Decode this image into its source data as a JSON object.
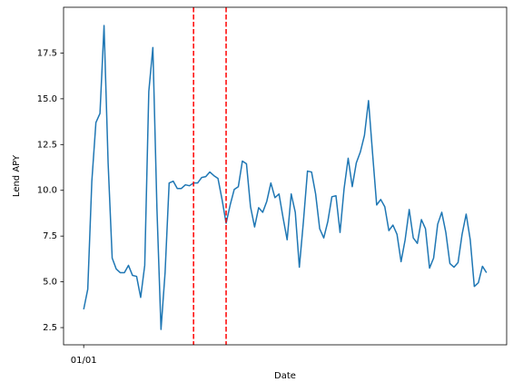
{
  "chart_data": {
    "type": "line",
    "xlabel": "Date",
    "ylabel": "Lend APY",
    "x": [
      0,
      1,
      2,
      3,
      4,
      5,
      6,
      7,
      8,
      9,
      10,
      11,
      12,
      13,
      14,
      15,
      16,
      17,
      18,
      19,
      20,
      21,
      22,
      23,
      24,
      25,
      26,
      27,
      28,
      29,
      30,
      31,
      32,
      33,
      34,
      35,
      36,
      37,
      38,
      39,
      40,
      41,
      42,
      43,
      44,
      45,
      46,
      47,
      48,
      49,
      50,
      51,
      52,
      53,
      54,
      55,
      56,
      57,
      58,
      59,
      60,
      61,
      62,
      63,
      64,
      65,
      66,
      67,
      68,
      69,
      70,
      71,
      72,
      73,
      74,
      75,
      76,
      77,
      78,
      79,
      80,
      81,
      82,
      83,
      84,
      85,
      86,
      87,
      88,
      89,
      90,
      91,
      92,
      93,
      94,
      95,
      96,
      97,
      98,
      99
    ],
    "values": [
      3.5,
      4.6,
      10.5,
      13.7,
      14.2,
      19.0,
      11.5,
      6.3,
      5.7,
      5.5,
      5.5,
      5.9,
      5.35,
      5.3,
      4.15,
      5.9,
      15.4,
      17.8,
      9.0,
      2.4,
      5.5,
      10.4,
      10.5,
      10.1,
      10.1,
      10.3,
      10.25,
      10.4,
      10.4,
      10.7,
      10.75,
      11.0,
      10.8,
      10.65,
      9.5,
      8.2,
      9.2,
      10.05,
      10.2,
      11.6,
      11.45,
      9.1,
      8.0,
      9.05,
      8.8,
      9.4,
      10.4,
      9.6,
      9.8,
      8.5,
      7.3,
      9.8,
      8.8,
      5.8,
      8.3,
      11.05,
      11.0,
      9.8,
      7.9,
      7.4,
      8.3,
      9.65,
      9.7,
      7.7,
      10.1,
      11.75,
      10.2,
      11.5,
      12.1,
      13.0,
      14.9,
      12.0,
      9.2,
      9.5,
      9.1,
      7.8,
      8.1,
      7.6,
      6.1,
      7.3,
      8.95,
      7.4,
      7.1,
      8.4,
      7.9,
      5.75,
      6.3,
      8.15,
      8.8,
      7.7,
      6.0,
      5.8,
      6.05,
      7.6,
      8.7,
      7.3,
      4.75,
      4.95,
      5.85,
      5.5
    ],
    "color": "#1f77b4",
    "xlim": [
      -4.95,
      103.95
    ],
    "xticks": [
      {
        "value": 0,
        "label": "01/01"
      }
    ],
    "ylim": [
      1.56,
      20.0
    ],
    "yticks": [
      2.5,
      {
        "value": 5,
        "label": "5.0"
      },
      7.5,
      {
        "value": 10,
        "label": "10.0"
      },
      12.5,
      {
        "value": 15,
        "label": "15.0"
      },
      17.5
    ],
    "vlines": [
      27,
      35
    ],
    "vline_color": "#ff0000"
  }
}
